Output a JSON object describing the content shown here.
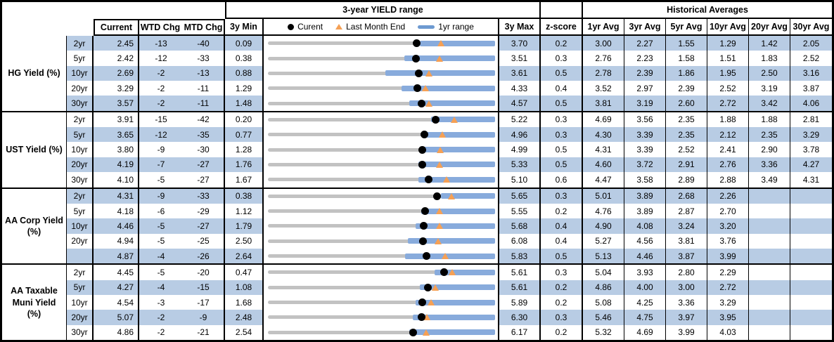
{
  "header": {
    "range_title": "3-year YIELD range",
    "hist_title": "Historical Averages",
    "cols": {
      "current": "Current",
      "wtd": "WTD Chg",
      "mtd": "MTD Chg",
      "min3y": "3y Min",
      "max3y": "3y Max",
      "z": "z-score"
    },
    "avg_cols": [
      "1yr Avg",
      "3yr Avg",
      "5yr Avg",
      "10yr Avg",
      "20yr Avg",
      "30yr Avg"
    ],
    "legend": {
      "current": "Curent",
      "last_month": "Last Month End",
      "range1y": "1yr range"
    }
  },
  "colors": {
    "stripe": "#b8cce4",
    "bar_blue": "#88abdc",
    "track_gray": "#c2c2c2",
    "marker_orange": "#f5a055",
    "marker_black": "#000000"
  },
  "chart_data": {
    "type": "table",
    "title": "3-year YIELD range",
    "note": "Each row is a bullet chart: gray track spans 3y Min to 3y Max; blue bar is the 1yr range (low estimated from pixels, high equals 3y Max); black dot = current; orange triangle = last month end (current minus MTD change in bps).",
    "groups": [
      {
        "label": "HG Yield (%)",
        "rows": [
          {
            "tenor": "2yr",
            "current": "2.45",
            "wtd": "-13",
            "mtd": "-40",
            "min3y": "0.09",
            "max3y": "3.70",
            "z": "0.2",
            "avgs": [
              "3.00",
              "2.27",
              "1.55",
              "1.29",
              "1.42",
              "2.05"
            ],
            "y1_low": 2.5
          },
          {
            "tenor": "5yr",
            "current": "2.42",
            "wtd": "-12",
            "mtd": "-33",
            "min3y": "0.38",
            "max3y": "3.51",
            "z": "0.3",
            "avgs": [
              "2.76",
              "2.23",
              "1.58",
              "1.51",
              "1.83",
              "2.52"
            ],
            "y1_low": 2.26
          },
          {
            "tenor": "10yr",
            "current": "2.69",
            "wtd": "-2",
            "mtd": "-13",
            "min3y": "0.88",
            "max3y": "3.61",
            "z": "0.5",
            "avgs": [
              "2.78",
              "2.39",
              "1.86",
              "1.95",
              "2.50",
              "3.16"
            ],
            "y1_low": 2.29
          },
          {
            "tenor": "20yr",
            "current": "3.29",
            "wtd": "-2",
            "mtd": "-11",
            "min3y": "1.29",
            "max3y": "4.33",
            "z": "0.4",
            "avgs": [
              "3.52",
              "2.97",
              "2.39",
              "2.52",
              "3.19",
              "3.87"
            ],
            "y1_low": 3.08
          },
          {
            "tenor": "30yr",
            "current": "3.57",
            "wtd": "-2",
            "mtd": "-11",
            "min3y": "1.48",
            "max3y": "4.57",
            "z": "0.5",
            "avgs": [
              "3.81",
              "3.19",
              "2.60",
              "2.72",
              "3.42",
              "4.06"
            ],
            "y1_low": 3.4
          }
        ]
      },
      {
        "label": "UST Yield (%)",
        "rows": [
          {
            "tenor": "2yr",
            "current": "3.91",
            "wtd": "-15",
            "mtd": "-42",
            "min3y": "0.20",
            "max3y": "5.22",
            "z": "0.3",
            "avgs": [
              "4.69",
              "3.56",
              "2.35",
              "1.88",
              "1.88",
              "2.81"
            ],
            "y1_low": 3.8
          },
          {
            "tenor": "5yr",
            "current": "3.65",
            "wtd": "-12",
            "mtd": "-35",
            "min3y": "0.77",
            "max3y": "4.96",
            "z": "0.3",
            "avgs": [
              "4.30",
              "3.39",
              "2.35",
              "2.12",
              "2.35",
              "3.29"
            ],
            "y1_low": 3.69
          },
          {
            "tenor": "10yr",
            "current": "3.80",
            "wtd": "-9",
            "mtd": "-30",
            "min3y": "1.28",
            "max3y": "4.99",
            "z": "0.5",
            "avgs": [
              "4.31",
              "3.39",
              "2.52",
              "2.41",
              "2.90",
              "3.78"
            ],
            "y1_low": 3.78
          },
          {
            "tenor": "20yr",
            "current": "4.19",
            "wtd": "-7",
            "mtd": "-27",
            "min3y": "1.76",
            "max3y": "5.33",
            "z": "0.5",
            "avgs": [
              "4.60",
              "3.72",
              "2.91",
              "2.76",
              "3.36",
              "4.27"
            ],
            "y1_low": 4.12
          },
          {
            "tenor": "30yr",
            "current": "4.10",
            "wtd": "-5",
            "mtd": "-27",
            "min3y": "1.67",
            "max3y": "5.10",
            "z": "0.6",
            "avgs": [
              "4.47",
              "3.58",
              "2.89",
              "2.88",
              "3.49",
              "4.31"
            ],
            "y1_low": 3.94
          }
        ]
      },
      {
        "label": "AA Corp Yield (%)",
        "rows": [
          {
            "tenor": "2yr",
            "current": "4.31",
            "wtd": "-9",
            "mtd": "-33",
            "min3y": "0.38",
            "max3y": "5.65",
            "z": "0.3",
            "avgs": [
              "5.01",
              "3.89",
              "2.68",
              "2.26",
              "",
              ""
            ],
            "y1_low": 4.4
          },
          {
            "tenor": "5yr",
            "current": "4.18",
            "wtd": "-6",
            "mtd": "-29",
            "min3y": "1.12",
            "max3y": "5.55",
            "z": "0.2",
            "avgs": [
              "4.76",
              "3.89",
              "2.87",
              "2.70",
              "",
              ""
            ],
            "y1_low": 4.11
          },
          {
            "tenor": "10yr",
            "current": "4.46",
            "wtd": "-5",
            "mtd": "-27",
            "min3y": "1.79",
            "max3y": "5.68",
            "z": "0.4",
            "avgs": [
              "4.90",
              "4.08",
              "3.24",
              "3.20",
              "",
              ""
            ],
            "y1_low": 4.32
          },
          {
            "tenor": "20yr",
            "current": "4.94",
            "wtd": "-5",
            "mtd": "-25",
            "min3y": "2.50",
            "max3y": "6.08",
            "z": "0.4",
            "avgs": [
              "5.27",
              "4.56",
              "3.81",
              "3.76",
              "",
              ""
            ],
            "y1_low": 4.71
          },
          {
            "tenor": "",
            "current": "4.87",
            "wtd": "-4",
            "mtd": "-26",
            "min3y": "2.64",
            "max3y": "5.83",
            "z": "0.5",
            "avgs": [
              "5.13",
              "4.46",
              "3.87",
              "3.99",
              "",
              ""
            ],
            "y1_low": 4.57
          }
        ]
      },
      {
        "label": "AA Taxable Muni Yield (%)",
        "rows": [
          {
            "tenor": "2yr",
            "current": "4.45",
            "wtd": "-5",
            "mtd": "-20",
            "min3y": "0.47",
            "max3y": "5.61",
            "z": "0.3",
            "avgs": [
              "5.04",
              "3.93",
              "2.80",
              "2.29",
              "",
              ""
            ],
            "y1_low": 4.24
          },
          {
            "tenor": "5yr",
            "current": "4.27",
            "wtd": "-4",
            "mtd": "-15",
            "min3y": "1.08",
            "max3y": "5.61",
            "z": "0.2",
            "avgs": [
              "4.86",
              "4.00",
              "3.00",
              "2.72",
              "",
              ""
            ],
            "y1_low": 4.11
          },
          {
            "tenor": "10yr",
            "current": "4.54",
            "wtd": "-3",
            "mtd": "-17",
            "min3y": "1.68",
            "max3y": "5.89",
            "z": "0.2",
            "avgs": [
              "5.08",
              "4.25",
              "3.36",
              "3.29",
              "",
              ""
            ],
            "y1_low": 4.42
          },
          {
            "tenor": "20yr",
            "current": "5.07",
            "wtd": "-2",
            "mtd": "-9",
            "min3y": "2.48",
            "max3y": "6.30",
            "z": "0.3",
            "avgs": [
              "5.46",
              "4.75",
              "3.97",
              "3.95",
              "",
              ""
            ],
            "y1_low": 4.92
          },
          {
            "tenor": "30yr",
            "current": "4.86",
            "wtd": "-2",
            "mtd": "-21",
            "min3y": "2.54",
            "max3y": "6.17",
            "z": "0.2",
            "avgs": [
              "5.32",
              "4.69",
              "3.99",
              "4.03",
              "",
              ""
            ],
            "y1_low": 4.8
          }
        ]
      }
    ]
  }
}
